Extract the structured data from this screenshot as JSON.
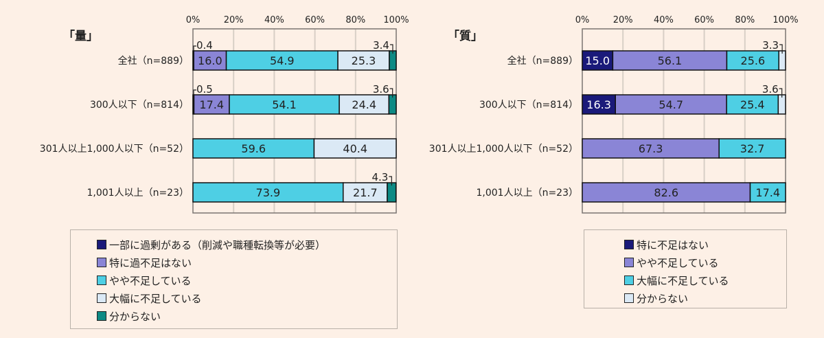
{
  "chart_data": [
    {
      "type": "bar",
      "orientation": "horizontal",
      "stacked": true,
      "title": "「量」",
      "xlim": [
        0,
        100
      ],
      "xticks": [
        "0%",
        "20%",
        "40%",
        "60%",
        "80%",
        "100%"
      ],
      "grid": true,
      "legend_position": "bottom",
      "categories": [
        "全社（n=889）",
        "300人以下（n=814）",
        "301人以上1,000人以下（n=52）",
        "1,001人以上（n=23）"
      ],
      "series": [
        {
          "name": "一部に過剰がある（削減や職種転換等が必要）",
          "color": "#1a1a7a",
          "values": [
            0.4,
            0.5,
            0,
            0
          ]
        },
        {
          "name": "特に過不足はない",
          "color": "#8a85d6",
          "values": [
            16.0,
            17.4,
            0,
            0
          ]
        },
        {
          "name": "やや不足している",
          "color": "#4ecfe4",
          "values": [
            54.9,
            54.1,
            59.6,
            73.9
          ]
        },
        {
          "name": "大幅に不足している",
          "color": "#dbe9f5",
          "values": [
            25.3,
            24.4,
            40.4,
            21.7
          ]
        },
        {
          "name": "分からない",
          "color": "#0d8a84",
          "values": [
            3.4,
            3.6,
            0,
            4.3
          ]
        }
      ]
    },
    {
      "type": "bar",
      "orientation": "horizontal",
      "stacked": true,
      "title": "「質」",
      "xlim": [
        0,
        100
      ],
      "xticks": [
        "0%",
        "20%",
        "40%",
        "60%",
        "80%",
        "100%"
      ],
      "grid": true,
      "legend_position": "bottom",
      "categories": [
        "全社（n=889）",
        "300人以下（n=814）",
        "301人以上1,000人以下（n=52）",
        "1,001人以上（n=23）"
      ],
      "series": [
        {
          "name": "特に不足はない",
          "color": "#1a1a7a",
          "values": [
            15.0,
            16.3,
            0,
            0
          ]
        },
        {
          "name": "やや不足している",
          "color": "#8a85d6",
          "values": [
            56.1,
            54.7,
            67.3,
            82.6
          ]
        },
        {
          "name": "大幅に不足している",
          "color": "#4ecfe4",
          "values": [
            25.6,
            25.4,
            32.7,
            17.4
          ]
        },
        {
          "name": "分からない",
          "color": "#dbe9f5",
          "values": [
            3.3,
            3.6,
            0,
            0
          ]
        }
      ]
    }
  ]
}
